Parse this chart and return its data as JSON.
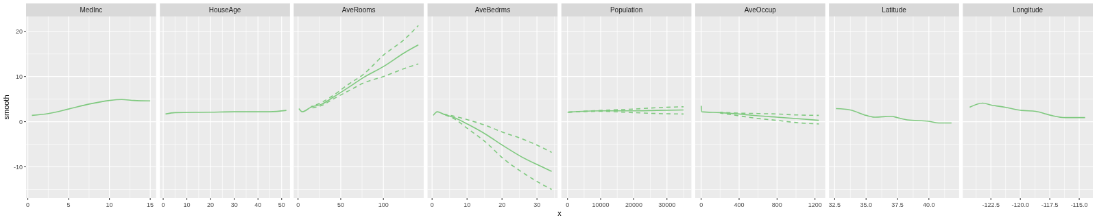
{
  "chart_data": [
    {
      "type": "line",
      "title": "MedInc",
      "ylabel": "smooth",
      "xlim": [
        -0.22,
        15.72
      ],
      "xticks": [
        0,
        5,
        10,
        15
      ],
      "ylim": [
        -16.9,
        23.3
      ],
      "yticks": [
        -10,
        0,
        10,
        20
      ],
      "grid": true,
      "series": [
        {
          "color": "#7fc97f",
          "x": [
            0.5,
            2.5,
            5,
            7.5,
            10,
            11.5,
            13,
            15
          ],
          "values": [
            1.4,
            1.8,
            2.8,
            3.9,
            4.7,
            4.9,
            4.7,
            4.6
          ]
        }
      ]
    },
    {
      "type": "line",
      "title": "HouseAge",
      "tick_labels": "x",
      "xlim": [
        -1.4,
        53.5
      ],
      "xticks": [
        0,
        10,
        20,
        30,
        40,
        50
      ],
      "ylim": [
        -16.9,
        23.3
      ],
      "yticks": [
        -10,
        0,
        10,
        20
      ],
      "grid": true,
      "series": [
        {
          "color": "#7fc97f",
          "x": [
            1,
            5,
            20,
            30,
            45,
            52
          ],
          "values": [
            1.7,
            2.0,
            2.1,
            2.2,
            2.2,
            2.5
          ]
        }
      ]
    },
    {
      "type": "line",
      "title": "AveRooms",
      "tick_labels": "x",
      "xlim": [
        -5.1,
        147.3
      ],
      "xticks": [
        0,
        50,
        100
      ],
      "ylim": [
        -16.9,
        23.3
      ],
      "yticks": [
        -10,
        0,
        10,
        20
      ],
      "grid": true,
      "series": [
        {
          "color": "#7fc97f",
          "x": [
            1,
            5,
            15,
            28,
            41,
            60,
            76,
            100,
            125,
            141
          ],
          "values": [
            2.9,
            2.2,
            3.2,
            3.9,
            5.4,
            7.7,
            9.7,
            12.2,
            15.3,
            17.0
          ]
        },
        {
          "color": "#7fc97f",
          "line_style": "dashed",
          "x": [
            15,
            28,
            41,
            60,
            76,
            100,
            125,
            141
          ],
          "values": [
            3.3,
            4.3,
            5.8,
            8.4,
            10.4,
            14.7,
            18.3,
            21.3
          ]
        },
        {
          "color": "#7fc97f",
          "line_style": "dashed",
          "x": [
            15,
            28,
            41,
            60,
            76,
            100,
            125,
            141
          ],
          "values": [
            3.0,
            3.6,
            5.0,
            6.9,
            8.5,
            10.0,
            11.8,
            12.8
          ]
        }
      ]
    },
    {
      "type": "line",
      "title": "AveBedrms",
      "xlabel": "x",
      "tick_labels": "x",
      "xlim": [
        -1.3,
        35.9
      ],
      "xticks": [
        0,
        10,
        20,
        30
      ],
      "ylim": [
        -16.9,
        23.3
      ],
      "yticks": [
        -10,
        0,
        10,
        20
      ],
      "grid": true,
      "series": [
        {
          "color": "#7fc97f",
          "x": [
            0.33,
            1.5,
            3.2,
            6.4,
            10.3,
            15.6,
            20.1,
            25.4,
            30.6,
            34.2
          ],
          "values": [
            1.4,
            2.2,
            1.7,
            0.9,
            -0.6,
            -2.9,
            -5.2,
            -7.7,
            -9.7,
            -11.0
          ]
        },
        {
          "color": "#7fc97f",
          "line_style": "dashed",
          "x": [
            3.2,
            6.4,
            10.3,
            15.6,
            20.1,
            25.4,
            30.6,
            34.2
          ],
          "values": [
            1.7,
            1.2,
            0.4,
            -0.9,
            -2.3,
            -3.7,
            -5.4,
            -6.8
          ]
        },
        {
          "color": "#7fc97f",
          "line_style": "dashed",
          "x": [
            3.2,
            6.4,
            10.3,
            15.6,
            20.1,
            25.4,
            30.6,
            34.2
          ],
          "values": [
            1.6,
            0.6,
            -1.6,
            -4.7,
            -8.0,
            -11.0,
            -13.5,
            -15.0
          ]
        }
      ]
    },
    {
      "type": "line",
      "title": "Population",
      "tick_labels": "x",
      "xlim": [
        -1860,
        37380
      ],
      "xticks": [
        0,
        10000,
        20000,
        30000
      ],
      "ylim": [
        -16.9,
        23.3
      ],
      "yticks": [
        -10,
        0,
        10,
        20
      ],
      "grid": true,
      "series": [
        {
          "color": "#7fc97f",
          "x": [
            3,
            10000,
            20000,
            27000,
            35000
          ],
          "values": [
            2.1,
            2.4,
            2.4,
            2.5,
            2.6
          ]
        },
        {
          "color": "#7fc97f",
          "line_style": "dashed",
          "x": [
            3,
            10000,
            20000,
            27000,
            35000
          ],
          "values": [
            2.1,
            2.5,
            2.8,
            3.1,
            3.3
          ]
        },
        {
          "color": "#7fc97f",
          "line_style": "dashed",
          "x": [
            3,
            10000,
            20000,
            27000,
            35000
          ],
          "values": [
            2.1,
            2.3,
            2.0,
            1.8,
            1.7
          ]
        }
      ]
    },
    {
      "type": "line",
      "title": "AveOccup",
      "tick_labels": "x",
      "xlim": [
        -63,
        1308
      ],
      "xticks": [
        0,
        400,
        800,
        1200
      ],
      "ylim": [
        -16.9,
        23.3
      ],
      "yticks": [
        -10,
        0,
        10,
        20
      ],
      "grid": true,
      "series": [
        {
          "color": "#7fc97f",
          "x": [
            1,
            5,
            200,
            400,
            600,
            800,
            1000,
            1240
          ],
          "values": [
            3.5,
            2.2,
            2.0,
            1.7,
            1.3,
            1.0,
            0.7,
            0.3
          ]
        },
        {
          "color": "#7fc97f",
          "line_style": "dashed",
          "x": [
            200,
            400,
            600,
            800,
            1000,
            1240
          ],
          "values": [
            2.1,
            1.9,
            1.8,
            1.7,
            1.5,
            1.4
          ]
        },
        {
          "color": "#7fc97f",
          "line_style": "dashed",
          "x": [
            200,
            400,
            600,
            800,
            1000,
            1240
          ],
          "values": [
            1.9,
            1.3,
            0.7,
            0.3,
            -0.2,
            -0.5
          ]
        }
      ]
    },
    {
      "type": "line",
      "title": "Latitude",
      "tick_labels": "x",
      "xlim": [
        32.05,
        42.4
      ],
      "xticks": [
        32.5,
        {
          "value": 35,
          "label": "35.0"
        },
        37.5,
        {
          "value": 40,
          "label": "40.0"
        }
      ],
      "ylim": [
        -16.9,
        23.3
      ],
      "yticks": [
        -10,
        0,
        10,
        20
      ],
      "grid": true,
      "series": [
        {
          "color": "#7fc97f",
          "x": [
            32.6,
            33.74,
            35.0,
            35.7,
            37.0,
            37.5,
            38.3,
            40.0,
            40.8,
            41.8
          ],
          "values": [
            2.9,
            2.6,
            1.4,
            1.0,
            1.2,
            0.9,
            0.4,
            0.1,
            -0.3,
            -0.3
          ]
        }
      ]
    },
    {
      "type": "line",
      "title": "Longitude",
      "tick_labels": "x",
      "xlim": [
        -124.88,
        -113.84
      ],
      "xticks": [
        -122.5,
        {
          "value": -120,
          "label": "-120.0"
        },
        -117.5,
        {
          "value": -115,
          "label": "-115.0"
        }
      ],
      "ylim": [
        -16.9,
        23.3
      ],
      "yticks": [
        -10,
        0,
        10,
        20
      ],
      "grid": true,
      "series": [
        {
          "color": "#7fc97f",
          "x": [
            -124.3,
            -123.2,
            -122.5,
            -121.3,
            -119.9,
            -118.7,
            -117.4,
            -116.2,
            -114.5
          ],
          "values": [
            3.2,
            4.1,
            3.7,
            3.2,
            2.5,
            2.3,
            1.4,
            0.9,
            0.9
          ]
        }
      ]
    }
  ]
}
